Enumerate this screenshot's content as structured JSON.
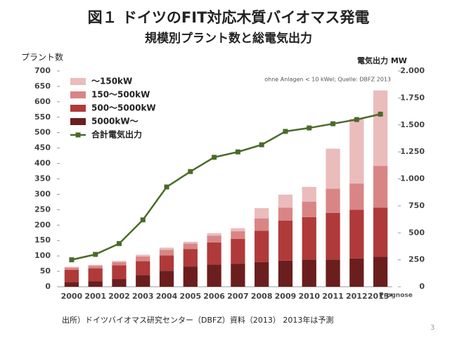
{
  "chart_data": {
    "type": "bar",
    "title": "図１ ドイツのFIT対応木質バイオマス発電",
    "subtitle": "規模別プラント数と総電気出力",
    "y_label": "プラント数",
    "y2_label": "電気出力 MW",
    "annotation": "ohne Anlagen < 10 kWel; Quelle: DBFZ 2013",
    "forecast_label": "Prognose",
    "footnote": "出所）ドイツバイオマス研究センター（DBFZ）資料（2013） 2013年は予測",
    "page_number": "3",
    "categories": [
      "2000",
      "2001",
      "2002",
      "2003",
      "2004",
      "2005",
      "2006",
      "2007",
      "2008",
      "2009",
      "2010",
      "2011",
      "2012",
      "2013*"
    ],
    "stacked": true,
    "series": [
      {
        "name": "5000kW～",
        "color": "#6b1e1e",
        "values": [
          15,
          18,
          25,
          38,
          52,
          65,
          72,
          75,
          80,
          85,
          88,
          88,
          92,
          97
        ]
      },
      {
        "name": "500～5000kW",
        "color": "#b03a3a",
        "values": [
          40,
          42,
          45,
          45,
          50,
          57,
          72,
          80,
          102,
          130,
          138,
          152,
          158,
          160
        ]
      },
      {
        "name": "150～500kW",
        "color": "#d98585",
        "values": [
          7,
          8,
          10,
          15,
          18,
          18,
          22,
          25,
          40,
          42,
          50,
          78,
          85,
          135
        ]
      },
      {
        "name": "～150kW",
        "color": "#ebbcbc",
        "values": [
          3,
          3,
          4,
          6,
          7,
          6,
          8,
          10,
          33,
          42,
          48,
          130,
          210,
          245
        ]
      },
      {
        "name": "合計電気出力",
        "color": "#4a6a2a",
        "type": "line",
        "axis": "y2",
        "values": [
          250,
          300,
          400,
          620,
          925,
          1068,
          1200,
          1250,
          1316,
          1440,
          1472,
          1511,
          1550,
          1600
        ]
      }
    ],
    "ylim": [
      0,
      700
    ],
    "yticks": [
      0,
      50,
      100,
      150,
      200,
      250,
      300,
      350,
      400,
      450,
      500,
      550,
      600,
      650,
      700
    ],
    "y2lim": [
      0,
      2000
    ],
    "y2ticks": [
      0,
      250,
      500,
      750,
      {
        "value": 1000,
        "label": "1.000"
      },
      {
        "value": 1250,
        "label": "1.250"
      },
      {
        "value": 1500,
        "label": "1.500"
      },
      {
        "value": 1750,
        "label": "1.750"
      },
      {
        "value": 2000,
        "label": "2.000"
      }
    ],
    "legend": "upper left"
  }
}
